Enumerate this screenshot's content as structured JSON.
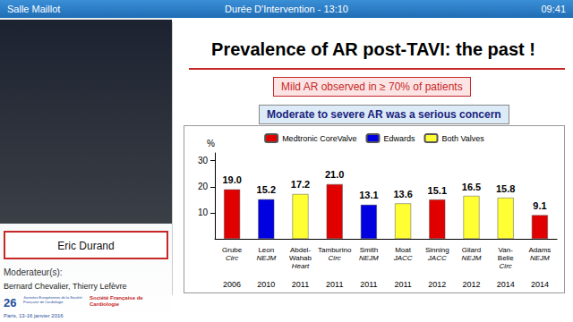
{
  "screen": {
    "room": "Salle Maillot",
    "duration": "Durée D'Intervention - 13:10",
    "clock": "09:41",
    "speaker": "Eric Durand",
    "moderators_label": "Moderateur(s):",
    "moderators": "Bernard Chevalier, Thierry Lefèvre",
    "event_number": "26",
    "event": "Journées Européennes de la Société Française de Cardiologie",
    "society": "Société Française de Cardiologie",
    "event_place_date": "Paris, 13-16 janvier 2016"
  },
  "chart_data": {
    "type": "bar",
    "title": "Prevalence of AR post-TAVI: the past !",
    "annotations": [
      "Mild AR observed in ≥ 70% of patients",
      "Moderate to severe AR was a serious concern"
    ],
    "y_label": "%",
    "categories": [
      "Grube\nCirc",
      "Leon\nNEJM",
      "Abdel-\nWahab\nHeart",
      "Tamburino\nCirc",
      "Smith\nNEJM",
      "Moat\nJACC",
      "Sinning\nJACC",
      "Gilard\nNEJM",
      "Van-\nBelle\nCirc",
      "Adams\nNEJM"
    ],
    "years": [
      "2006",
      "2010",
      "2011",
      "2011",
      "2011",
      "2011",
      "2012",
      "2012",
      "2014",
      "2014"
    ],
    "series": [
      {
        "name": "Medtronic CoreValve",
        "color": "#e00000",
        "values": [
          19.0,
          null,
          null,
          21.0,
          null,
          null,
          15.1,
          null,
          null,
          9.1
        ],
        "value_labels": [
          "19.0",
          null,
          null,
          "21.0",
          null,
          null,
          "15.1",
          null,
          null,
          "9.1"
        ]
      },
      {
        "name": "Edwards",
        "color": "#0000e0",
        "values": [
          null,
          15.2,
          null,
          null,
          13.1,
          null,
          null,
          null,
          null,
          null
        ],
        "value_labels": [
          null,
          "15.2",
          null,
          null,
          "13.1",
          null,
          null,
          null,
          null,
          null
        ]
      },
      {
        "name": "Both Valves",
        "color": "#ffff33",
        "values": [
          null,
          null,
          17.2,
          null,
          null,
          13.6,
          null,
          16.5,
          15.8,
          null
        ],
        "value_labels": [
          null,
          null,
          "17.2",
          null,
          null,
          "13.6",
          null,
          "16.5",
          "15.8",
          null
        ]
      }
    ],
    "ylim": [
      0,
      33
    ],
    "yticks": [
      10,
      20,
      30
    ],
    "grid": false,
    "legend": "top",
    "data_labels": true
  }
}
